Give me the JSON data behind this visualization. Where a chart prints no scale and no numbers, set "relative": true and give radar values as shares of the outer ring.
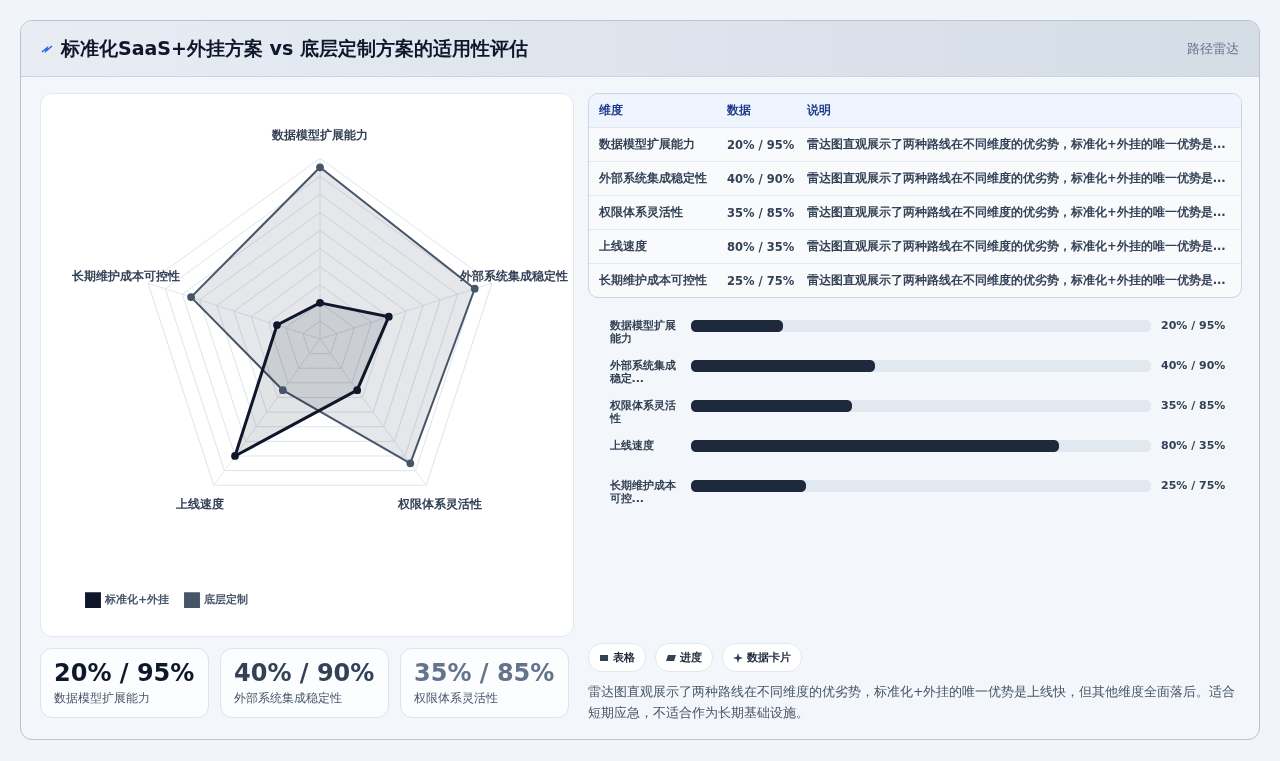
{
  "chart_data": [
    {
      "type": "radar",
      "title": "标准化SaaS+外挂方案 vs 底层定制方案的适用性评估",
      "annotations": [
        "路径雷达"
      ],
      "categories": [
        "数据模型扩展能力",
        "外部系统集成稳定性",
        "权限体系灵活性",
        "上线速度",
        "长期维护成本可控性"
      ],
      "relative": true,
      "legend": "bottom",
      "marker": "circle",
      "series": [
        {
          "name": "标准化+外挂",
          "color": "#0f172a",
          "values": [
            0.2,
            0.4,
            0.35,
            0.8,
            0.25
          ]
        },
        {
          "name": "底层定制",
          "color": "#475569",
          "values": [
            0.95,
            0.9,
            0.85,
            0.35,
            0.75
          ]
        }
      ]
    },
    {
      "type": "other",
      "categories": [
        "维度",
        "数据",
        "说明"
      ],
      "cell_labels": [
        [
          "数据模型扩展能力",
          "20% / 95%",
          "雷达图直观展示了两种路线在不同维度的优劣势，标准化+外挂的唯一优势是..."
        ],
        [
          "外部系统集成稳定性",
          "40% / 90%",
          "雷达图直观展示了两种路线在不同维度的优劣势，标准化+外挂的唯一优势是..."
        ],
        [
          "权限体系灵活性",
          "35% / 85%",
          "雷达图直观展示了两种路线在不同维度的优劣势，标准化+外挂的唯一优势是..."
        ],
        [
          "上线速度",
          "80% / 35%",
          "雷达图直观展示了两种路线在不同维度的优劣势，标准化+外挂的唯一优势是..."
        ],
        [
          "长期维护成本可控性",
          "25% / 75%",
          "雷达图直观展示了两种路线在不同维度的优劣势，标准化+外挂的唯一优势是..."
        ]
      ]
    },
    {
      "type": "bar",
      "orientation": "horizontal",
      "categories": [
        "数据模型扩展能力",
        "外部系统集成稳定...",
        "权限体系灵活性",
        "上线速度",
        "长期维护成本可控..."
      ],
      "values": [
        20,
        40,
        35,
        80,
        25
      ],
      "value_labels": [
        "20% / 95%",
        "40% / 90%",
        "35% / 85%",
        "80% / 35%",
        "25% / 75%"
      ],
      "color": "#1e293b",
      "xlim": [
        0,
        100
      ],
      "tick_labels": "y"
    },
    {
      "type": "other",
      "categories": [
        "数据模型扩展能力",
        "外部系统集成稳定性",
        "权限体系灵活性"
      ],
      "value_labels": [
        "20% / 95%",
        "40% / 90%",
        "35% / 85%"
      ]
    },
    {
      "type": "other",
      "categories": [
        "表格",
        "进度",
        "数据卡片"
      ],
      "annotations": [
        "雷达图直观展示了两种路线在不同维度的优劣势，标准化+外挂的唯一优势是上线快，但其他维度全面落后。适合短期应急，不适合作为长期基础设施。"
      ]
    }
  ]
}
